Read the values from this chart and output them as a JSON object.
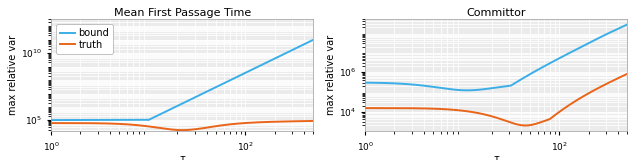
{
  "title_left": "Mean First Passage Time",
  "title_right": "Committor",
  "xlabel": "τ",
  "ylabel": "max relative var",
  "legend_labels": [
    "bound",
    "truth"
  ],
  "line_colors_blue": "#3baee8",
  "line_colors_orange": "#e8651a",
  "background_color": "#ebebeb",
  "grid_color": "#ffffff",
  "title_fontsize": 8,
  "label_fontsize": 7,
  "tick_fontsize": 6.5,
  "linewidth": 1.4
}
